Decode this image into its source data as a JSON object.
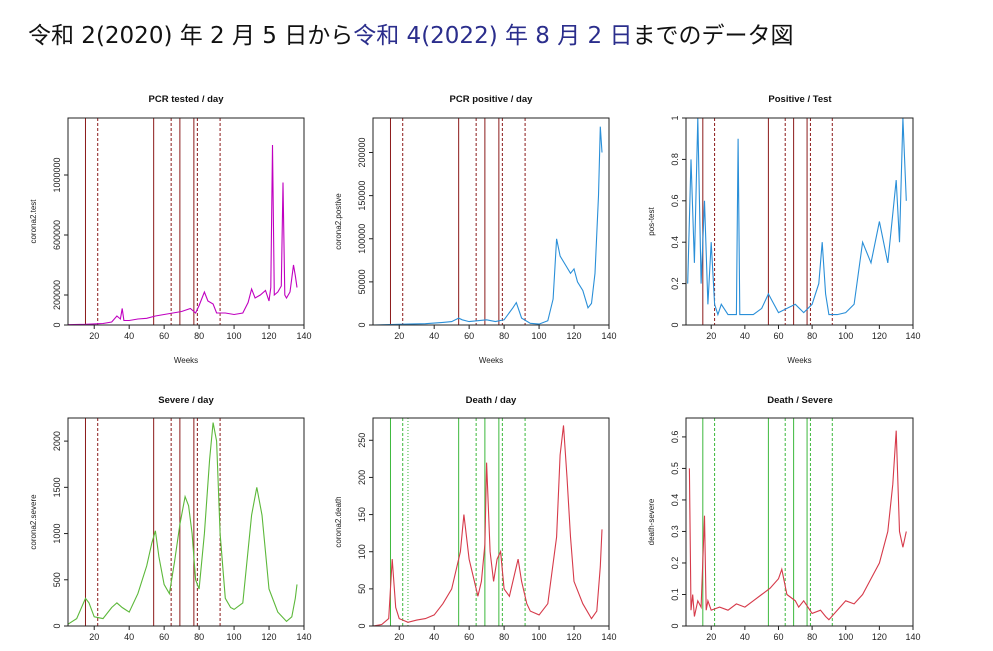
{
  "header": {
    "t1": "令和 2(2020) 年 2 月 5 日から",
    "t2": "令和 4(2022) 年 8 月 2 日",
    "t3": "までのデータ図",
    "highlight_color": "#2b2e8c"
  },
  "chart_data": [
    {
      "type": "line",
      "title": "PCR tested / day",
      "xlabel": "Weeks",
      "ylabel": "corona2.test",
      "color": "#c000c0",
      "xlim": [
        5,
        140
      ],
      "ylim": [
        0,
        1380000
      ],
      "xticks": [
        20,
        40,
        60,
        80,
        100,
        120,
        140
      ],
      "yticks": [
        0,
        200000,
        600000,
        1000000
      ],
      "vlines_color": "#8b1a1a",
      "vlines": [
        {
          "x": 15,
          "style": "solid"
        },
        {
          "x": 22,
          "style": "dashed"
        },
        {
          "x": 54,
          "style": "solid"
        },
        {
          "x": 64,
          "style": "dashed"
        },
        {
          "x": 69,
          "style": "solid"
        },
        {
          "x": 77,
          "style": "solid"
        },
        {
          "x": 79,
          "style": "dashed"
        },
        {
          "x": 92,
          "style": "dashed"
        }
      ],
      "series": [
        {
          "x": [
            5,
            15,
            25,
            30,
            33,
            35,
            36,
            37,
            40,
            45,
            50,
            55,
            60,
            65,
            70,
            75,
            78,
            80,
            83,
            85,
            88,
            90,
            95,
            100,
            105,
            108,
            110,
            112,
            115,
            118,
            120,
            121,
            122,
            123,
            125,
            127,
            128,
            129,
            130,
            132,
            134,
            135,
            136
          ],
          "y": [
            2000,
            5000,
            10000,
            20000,
            60000,
            40000,
            110000,
            30000,
            30000,
            40000,
            45000,
            60000,
            70000,
            80000,
            90000,
            110000,
            80000,
            130000,
            220000,
            160000,
            140000,
            80000,
            80000,
            70000,
            80000,
            150000,
            240000,
            180000,
            200000,
            230000,
            160000,
            250000,
            1200000,
            200000,
            220000,
            260000,
            950000,
            200000,
            180000,
            220000,
            400000,
            330000,
            250000
          ]
        }
      ]
    },
    {
      "type": "line",
      "title": "PCR positive / day",
      "xlabel": "Weeks",
      "ylabel": "corona2.postive",
      "color": "#2a8fd8",
      "xlim": [
        5,
        140
      ],
      "ylim": [
        0,
        240000
      ],
      "xticks": [
        20,
        40,
        60,
        80,
        100,
        120,
        140
      ],
      "yticks": [
        0,
        50000,
        100000,
        150000,
        200000
      ],
      "vlines_color": "#8b1a1a",
      "vlines": [
        {
          "x": 15,
          "style": "solid"
        },
        {
          "x": 22,
          "style": "dashed"
        },
        {
          "x": 54,
          "style": "solid"
        },
        {
          "x": 64,
          "style": "dashed"
        },
        {
          "x": 69,
          "style": "solid"
        },
        {
          "x": 77,
          "style": "solid"
        },
        {
          "x": 79,
          "style": "dashed"
        },
        {
          "x": 92,
          "style": "dashed"
        }
      ],
      "series": [
        {
          "x": [
            5,
            15,
            25,
            35,
            45,
            50,
            54,
            56,
            60,
            65,
            70,
            75,
            80,
            85,
            87,
            90,
            95,
            100,
            105,
            108,
            110,
            112,
            115,
            118,
            120,
            122,
            125,
            128,
            130,
            132,
            134,
            135,
            136
          ],
          "y": [
            0,
            500,
            1000,
            1500,
            3000,
            4000,
            8000,
            6000,
            4000,
            5000,
            6000,
            4000,
            6000,
            20000,
            26000,
            8000,
            2000,
            1000,
            5000,
            30000,
            100000,
            80000,
            70000,
            60000,
            65000,
            50000,
            40000,
            20000,
            25000,
            60000,
            150000,
            230000,
            200000
          ]
        }
      ]
    },
    {
      "type": "line",
      "title": "Positive / Test",
      "xlabel": "Weeks",
      "ylabel": "pos-test",
      "color": "#2a8fd8",
      "xlim": [
        5,
        140
      ],
      "ylim": [
        0,
        1.0
      ],
      "xticks": [
        20,
        40,
        60,
        80,
        100,
        120,
        140
      ],
      "yticks": [
        0,
        0.2,
        0.4,
        0.6,
        0.8,
        1.0
      ],
      "vlines_color": "#8b1a1a",
      "vlines": [
        {
          "x": 15,
          "style": "solid"
        },
        {
          "x": 22,
          "style": "dashed"
        },
        {
          "x": 54,
          "style": "solid"
        },
        {
          "x": 64,
          "style": "dashed"
        },
        {
          "x": 69,
          "style": "solid"
        },
        {
          "x": 77,
          "style": "solid"
        },
        {
          "x": 79,
          "style": "dashed"
        },
        {
          "x": 92,
          "style": "dashed"
        }
      ],
      "series": [
        {
          "x": [
            6,
            8,
            10,
            12,
            14,
            16,
            18,
            20,
            22,
            24,
            26,
            30,
            35,
            36,
            37,
            40,
            45,
            50,
            54,
            56,
            60,
            65,
            70,
            75,
            80,
            84,
            86,
            88,
            90,
            95,
            100,
            105,
            110,
            115,
            120,
            125,
            130,
            132,
            134,
            136
          ],
          "y": [
            0.2,
            0.8,
            0.3,
            1.0,
            0.2,
            0.6,
            0.1,
            0.4,
            0.1,
            0.05,
            0.1,
            0.05,
            0.05,
            0.9,
            0.05,
            0.05,
            0.05,
            0.08,
            0.15,
            0.12,
            0.06,
            0.08,
            0.1,
            0.06,
            0.1,
            0.2,
            0.4,
            0.15,
            0.05,
            0.05,
            0.06,
            0.1,
            0.4,
            0.3,
            0.5,
            0.3,
            0.7,
            0.4,
            1.0,
            0.6
          ]
        }
      ]
    },
    {
      "type": "line",
      "title": "Severe / day",
      "xlabel": "",
      "ylabel": "corona2.severe",
      "color": "#5cb83a",
      "xlim": [
        5,
        140
      ],
      "ylim": [
        0,
        2250
      ],
      "xticks": [
        20,
        40,
        60,
        80,
        100,
        120,
        140
      ],
      "yticks": [
        0,
        500,
        1000,
        1500,
        2000
      ],
      "vlines_color": "#8b1a1a",
      "vlines": [
        {
          "x": 15,
          "style": "solid"
        },
        {
          "x": 22,
          "style": "dashed"
        },
        {
          "x": 54,
          "style": "solid"
        },
        {
          "x": 64,
          "style": "dashed"
        },
        {
          "x": 69,
          "style": "solid"
        },
        {
          "x": 77,
          "style": "solid"
        },
        {
          "x": 79,
          "style": "dashed"
        },
        {
          "x": 92,
          "style": "dashed"
        }
      ],
      "series": [
        {
          "x": [
            5,
            10,
            15,
            17,
            20,
            25,
            30,
            33,
            36,
            40,
            45,
            50,
            53,
            55,
            57,
            60,
            63,
            66,
            69,
            72,
            74,
            76,
            78,
            80,
            83,
            86,
            88,
            90,
            92,
            95,
            98,
            100,
            105,
            110,
            113,
            116,
            120,
            125,
            130,
            133,
            135,
            136
          ],
          "y": [
            20,
            80,
            300,
            250,
            100,
            80,
            200,
            250,
            200,
            150,
            350,
            650,
            900,
            1030,
            750,
            450,
            350,
            700,
            1100,
            1400,
            1300,
            1000,
            500,
            400,
            1000,
            1800,
            2200,
            2000,
            1000,
            300,
            200,
            180,
            250,
            1200,
            1500,
            1200,
            400,
            150,
            50,
            100,
            300,
            450
          ]
        }
      ]
    },
    {
      "type": "line",
      "title": "Death / day",
      "xlabel": "",
      "ylabel": "corona2.death",
      "color": "#d63a4a",
      "xlim": [
        5,
        140
      ],
      "ylim": [
        0,
        280
      ],
      "xticks": [
        20,
        40,
        60,
        80,
        100,
        120,
        140
      ],
      "yticks": [
        0,
        50,
        100,
        150,
        200,
        250
      ],
      "vlines_color": "#3cb83c",
      "vlines": [
        {
          "x": 15,
          "style": "solid"
        },
        {
          "x": 22,
          "style": "dashed"
        },
        {
          "x": 25,
          "style": "dotted"
        },
        {
          "x": 54,
          "style": "solid"
        },
        {
          "x": 64,
          "style": "dashed"
        },
        {
          "x": 69,
          "style": "solid"
        },
        {
          "x": 77,
          "style": "solid"
        },
        {
          "x": 79,
          "style": "dashed"
        },
        {
          "x": 92,
          "style": "dashed"
        }
      ],
      "series": [
        {
          "x": [
            5,
            10,
            14,
            16,
            18,
            20,
            25,
            30,
            35,
            40,
            45,
            50,
            53,
            55,
            57,
            60,
            63,
            65,
            67,
            69,
            70,
            72,
            74,
            76,
            78,
            80,
            83,
            86,
            88,
            90,
            93,
            95,
            100,
            105,
            110,
            112,
            114,
            116,
            118,
            120,
            125,
            130,
            133,
            135,
            136
          ],
          "y": [
            0,
            2,
            10,
            90,
            25,
            10,
            5,
            8,
            10,
            15,
            30,
            50,
            80,
            100,
            150,
            90,
            60,
            40,
            60,
            110,
            220,
            100,
            60,
            90,
            100,
            50,
            40,
            70,
            90,
            60,
            30,
            20,
            15,
            30,
            120,
            230,
            270,
            200,
            120,
            60,
            30,
            10,
            20,
            80,
            130
          ]
        }
      ]
    },
    {
      "type": "line",
      "title": "Death / Severe",
      "xlabel": "",
      "ylabel": "death-severe",
      "color": "#d63a4a",
      "xlim": [
        5,
        140
      ],
      "ylim": [
        0,
        0.66
      ],
      "xticks": [
        20,
        40,
        60,
        80,
        100,
        120,
        140
      ],
      "yticks": [
        0,
        0.1,
        0.2,
        0.3,
        0.4,
        0.5,
        0.6
      ],
      "vlines_color": "#3cb83c",
      "vlines": [
        {
          "x": 15,
          "style": "solid"
        },
        {
          "x": 22,
          "style": "dashed"
        },
        {
          "x": 54,
          "style": "solid"
        },
        {
          "x": 64,
          "style": "dashed"
        },
        {
          "x": 69,
          "style": "solid"
        },
        {
          "x": 77,
          "style": "solid"
        },
        {
          "x": 79,
          "style": "dashed"
        },
        {
          "x": 92,
          "style": "dashed"
        }
      ],
      "series": [
        {
          "x": [
            7,
            8,
            9,
            10,
            12,
            14,
            16,
            17,
            18,
            20,
            25,
            30,
            35,
            40,
            45,
            50,
            55,
            60,
            62,
            65,
            70,
            72,
            75,
            80,
            85,
            88,
            90,
            95,
            100,
            105,
            110,
            115,
            120,
            125,
            128,
            130,
            132,
            134,
            136
          ],
          "y": [
            0.5,
            0.05,
            0.1,
            0.03,
            0.08,
            0.06,
            0.35,
            0.05,
            0.08,
            0.05,
            0.06,
            0.05,
            0.07,
            0.06,
            0.08,
            0.1,
            0.12,
            0.15,
            0.18,
            0.1,
            0.08,
            0.06,
            0.08,
            0.04,
            0.05,
            0.03,
            0.02,
            0.05,
            0.08,
            0.07,
            0.1,
            0.15,
            0.2,
            0.3,
            0.45,
            0.62,
            0.3,
            0.25,
            0.3
          ]
        }
      ]
    }
  ]
}
